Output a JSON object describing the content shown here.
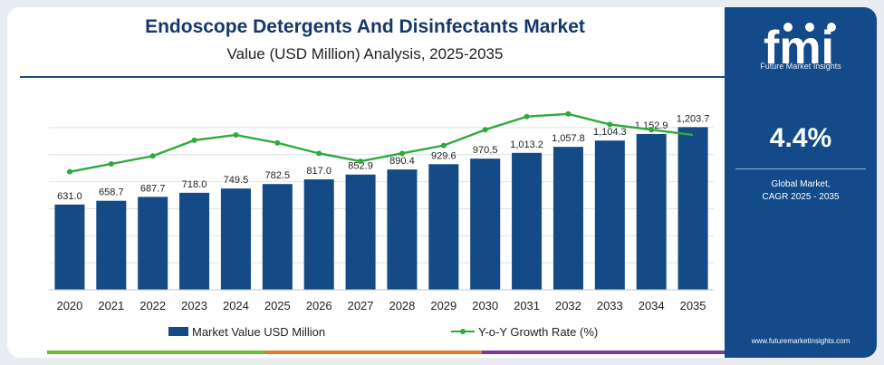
{
  "header": {
    "title": "Endoscope Detergents And Disinfectants Market",
    "subtitle": "Value (USD Million) Analysis, 2025-2035"
  },
  "side_panel": {
    "logo_text": "fmi",
    "logo_tagline": "Future Market Insights",
    "cagr_value": "4.4%",
    "cagr_label_1": "Global Market,",
    "cagr_label_2": "CAGR 2025 - 2035",
    "website": "www.futuremarketinsights.com"
  },
  "legend": {
    "bar_label": "Market Value USD Million",
    "line_label": "Y-o-Y Growth Rate (%)"
  },
  "colors": {
    "bar": "#144a86",
    "line": "#2eaa3c",
    "panel": "#124a8a",
    "title": "#14386b",
    "accent_green": "#6cbb3c",
    "accent_orange": "#e07a2c",
    "accent_purple": "#7a3b9a"
  },
  "chart_data": {
    "type": "bar",
    "title": "Endoscope Detergents And Disinfectants Market",
    "subtitle": "Value (USD Million) Analysis, 2025-2035",
    "categories": [
      "2020",
      "2021",
      "2022",
      "2023",
      "2024",
      "2025",
      "2026",
      "2027",
      "2028",
      "2029",
      "2030",
      "2031",
      "2032",
      "2033",
      "2034",
      "2035"
    ],
    "series": [
      {
        "name": "Market Value USD Million",
        "type": "bar",
        "values": [
          631.0,
          658.7,
          687.7,
          718.0,
          749.5,
          782.5,
          817.0,
          852.9,
          890.4,
          929.6,
          970.5,
          1013.2,
          1057.8,
          1104.3,
          1152.9,
          1203.7
        ],
        "labels": [
          "631.0",
          "658.7",
          "687.7",
          "718.0",
          "749.5",
          "782.5",
          "817.0",
          "852.9",
          "890.4",
          "929.6",
          "970.5",
          "1,013.2",
          "1,057.8",
          "1,104.3",
          "1,152.9",
          "1,203.7"
        ]
      },
      {
        "name": "Y-o-Y Growth Rate (%)",
        "type": "line",
        "values": [
          4.2,
          4.5,
          4.8,
          5.4,
          5.6,
          5.3,
          4.9,
          4.6,
          4.9,
          5.2,
          5.8,
          6.3,
          6.4,
          6.0,
          5.8,
          5.6
        ]
      }
    ],
    "ylim": [
      0,
      1300
    ],
    "grid": true,
    "legend_position": "bottom"
  }
}
